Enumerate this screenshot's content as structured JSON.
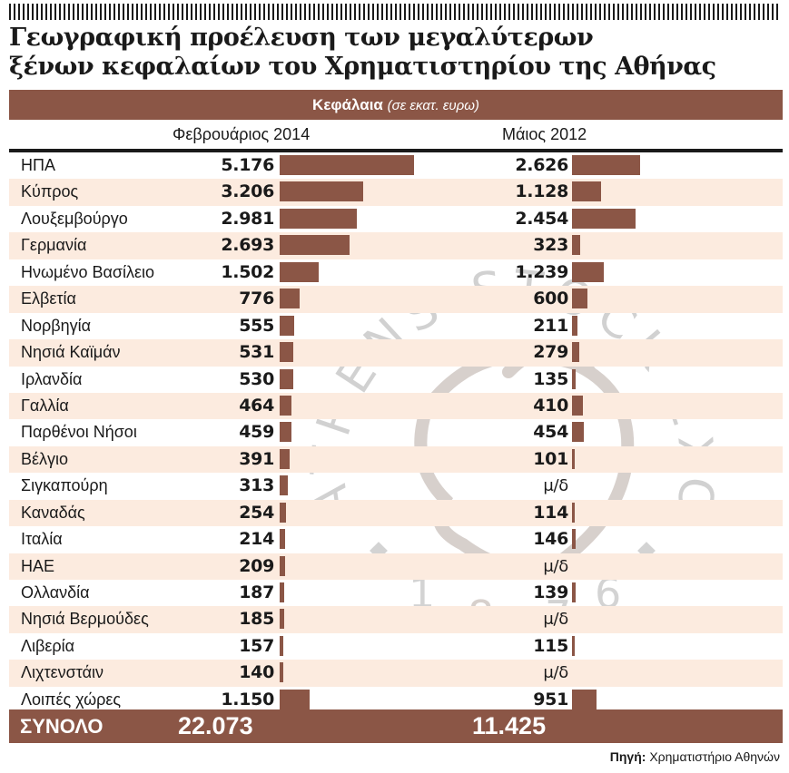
{
  "title": {
    "line1": "Γεωγραφική προέλευση των μεγαλύτερων",
    "line2": "ξένων κεφαλαίων του Χρηματιστηρίου της Αθήνας"
  },
  "header": {
    "label": "Κεφάλαια",
    "unit": "(σε εκατ. ευρω)",
    "col1": "Φεβρουάριος 2014",
    "col2": "Μάιος 2012"
  },
  "watermark": {
    "text": "ATHENS STOCK EXCHANGE",
    "year": "1876"
  },
  "colors": {
    "bar": "#8b5646",
    "band": "#8b5646",
    "alt_row": "#fcebdf"
  },
  "rows": [
    {
      "country": "ΗΠΑ",
      "feb2014": "5.176",
      "may2012": "2.626"
    },
    {
      "country": "Κύπρος",
      "feb2014": "3.206",
      "may2012": "1.128"
    },
    {
      "country": "Λουξεμβούργο",
      "feb2014": "2.981",
      "may2012": "2.454"
    },
    {
      "country": "Γερμανία",
      "feb2014": "2.693",
      "may2012": "323"
    },
    {
      "country": "Ηνωμένο Βασίλειο",
      "feb2014": "1.502",
      "may2012": "1.239"
    },
    {
      "country": "Ελβετία",
      "feb2014": "776",
      "may2012": "600"
    },
    {
      "country": "Νορβηγία",
      "feb2014": "555",
      "may2012": "211"
    },
    {
      "country": "Νησιά Καϊμάν",
      "feb2014": "531",
      "may2012": "279"
    },
    {
      "country": "Ιρλανδία",
      "feb2014": "530",
      "may2012": "135"
    },
    {
      "country": "Γαλλία",
      "feb2014": "464",
      "may2012": "410"
    },
    {
      "country": "Παρθένοι Νήσοι",
      "feb2014": "459",
      "may2012": "454"
    },
    {
      "country": "Βέλγιο",
      "feb2014": "391",
      "may2012": "101"
    },
    {
      "country": "Σιγκαπούρη",
      "feb2014": "313",
      "may2012": "μ/δ"
    },
    {
      "country": "Καναδάς",
      "feb2014": "254",
      "may2012": "114"
    },
    {
      "country": "Ιταλία",
      "feb2014": "214",
      "may2012": "146"
    },
    {
      "country": "ΗΑΕ",
      "feb2014": "209",
      "may2012": "μ/δ"
    },
    {
      "country": "Ολλανδία",
      "feb2014": "187",
      "may2012": "139"
    },
    {
      "country": "Νησιά Βερμούδες",
      "feb2014": "185",
      "may2012": "μ/δ"
    },
    {
      "country": "Λιβερία",
      "feb2014": "157",
      "may2012": "115"
    },
    {
      "country": "Λιχτενστάιν",
      "feb2014": "140",
      "may2012": "μ/δ"
    },
    {
      "country": "Λοιπές χώρες",
      "feb2014": "1.150",
      "may2012": "951"
    }
  ],
  "total": {
    "label": "ΣΥΝΟΛΟ",
    "feb2014": "22.073",
    "may2012": "11.425"
  },
  "source": {
    "label": "Πηγή:",
    "text": "Χρηματιστήριο Αθηνών"
  },
  "chart_data": {
    "type": "bar",
    "title": "Γεωγραφική προέλευση των μεγαλύτερων ξένων κεφαλαίων του Χρηματιστηρίου της Αθήνας",
    "ylabel": "Κεφάλαια (σε εκατ. ευρω)",
    "orientation": "horizontal",
    "categories": [
      "ΗΠΑ",
      "Κύπρος",
      "Λουξεμβούργο",
      "Γερμανία",
      "Ηνωμένο Βασίλειο",
      "Ελβετία",
      "Νορβηγία",
      "Νησιά Καϊμάν",
      "Ιρλανδία",
      "Γαλλία",
      "Παρθένοι Νήσοι",
      "Βέλγιο",
      "Σιγκαπούρη",
      "Καναδάς",
      "Ιταλία",
      "ΗΑΕ",
      "Ολλανδία",
      "Νησιά Βερμούδες",
      "Λιβερία",
      "Λιχτενστάιν",
      "Λοιπές χώρες"
    ],
    "series": [
      {
        "name": "Φεβρουάριος 2014",
        "values": [
          5176,
          3206,
          2981,
          2693,
          1502,
          776,
          555,
          531,
          530,
          464,
          459,
          391,
          313,
          254,
          214,
          209,
          187,
          185,
          157,
          140,
          1150
        ],
        "total": 22073
      },
      {
        "name": "Μάιος 2012",
        "values": [
          2626,
          1128,
          2454,
          323,
          1239,
          600,
          211,
          279,
          135,
          410,
          454,
          101,
          null,
          114,
          146,
          null,
          139,
          null,
          115,
          null,
          951
        ],
        "total": 11425
      }
    ],
    "missing_label": "μ/δ",
    "source": "Χρηματιστήριο Αθηνών"
  }
}
